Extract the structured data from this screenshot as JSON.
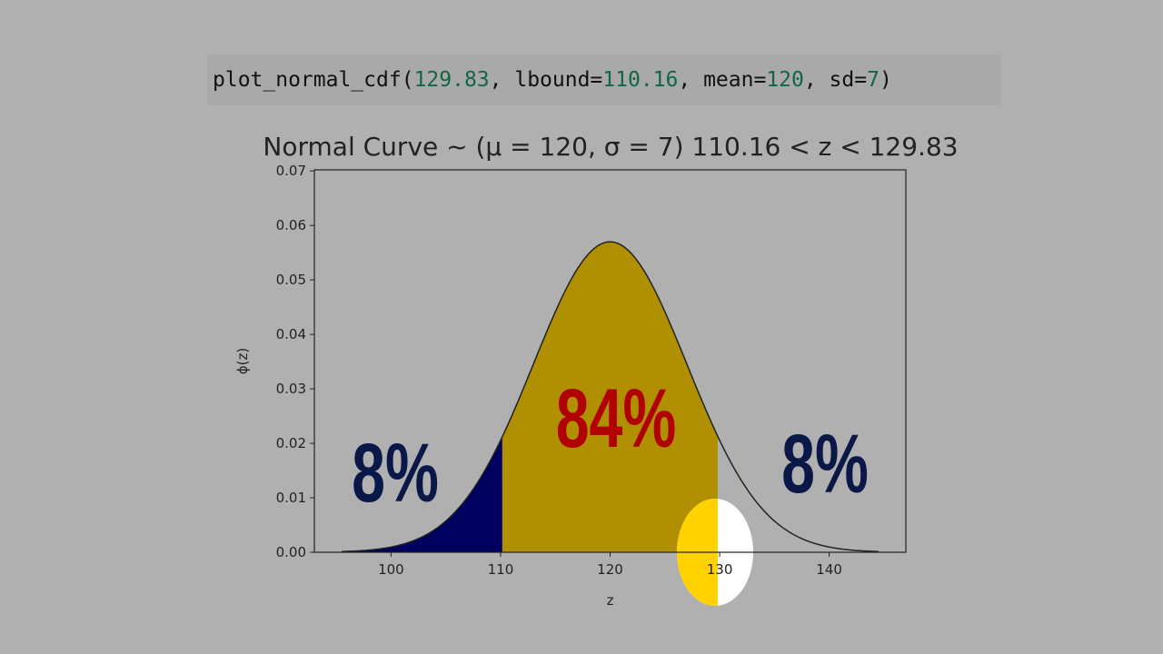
{
  "code": {
    "tokens": [
      "plot_normal_cdf(",
      "129.83",
      ", lbound=",
      "110.16",
      ", mean=",
      "120",
      ", sd=",
      "7",
      ")"
    ],
    "text_color": "#111111",
    "number_color": "#116644"
  },
  "chart_data": {
    "type": "normal",
    "title": "Normal Curve ~ (μ = 120, σ = 7) 110.16 < z < 129.83",
    "x_label": "z",
    "y_label": "ϕ(z)",
    "mean": 120,
    "sd": 7,
    "lbound": 110.16,
    "ubound": 129.83,
    "curve_range": [
      95.5,
      144.5
    ],
    "below_color": "#00005e",
    "between_color": "#b09000",
    "line_color": "#222222",
    "xlim": [
      93,
      147
    ],
    "xticks": [
      100,
      110,
      120,
      130,
      140
    ],
    "ylim": [
      0,
      0.0702
    ],
    "yticks": [
      {
        "value": 0,
        "label": "0.00"
      },
      {
        "value": 0.01,
        "label": "0.01"
      },
      {
        "value": 0.02,
        "label": "0.02"
      },
      {
        "value": 0.03,
        "label": "0.03"
      },
      {
        "value": 0.04,
        "label": "0.04"
      },
      {
        "value": 0.05,
        "label": "0.05"
      },
      {
        "value": 0.06,
        "label": "0.06"
      },
      {
        "value": 0.07,
        "label": "0.07"
      }
    ],
    "grid": false,
    "annotations": [
      {
        "text": "8%",
        "color": "#0a1848"
      },
      {
        "text": "84%",
        "color": "#b00000"
      },
      {
        "text": "8%",
        "color": "#0a1848"
      }
    ]
  }
}
